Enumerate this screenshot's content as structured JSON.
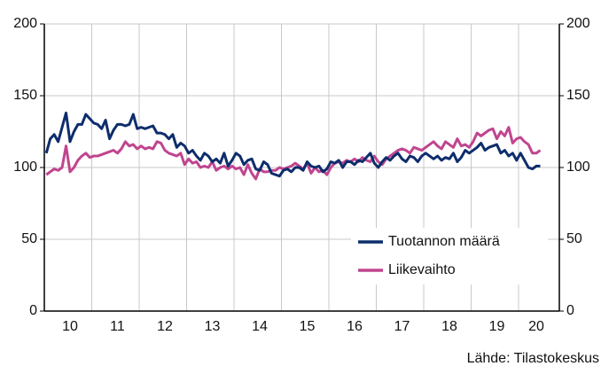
{
  "chart_data": {
    "type": "line",
    "source": "Lähde: Tilastokeskus",
    "categories": [
      null,
      null,
      null,
      null,
      null,
      null,
      "10",
      null,
      null,
      null,
      null,
      null,
      null,
      null,
      null,
      null,
      null,
      null,
      "11",
      null,
      null,
      null,
      null,
      null,
      null,
      null,
      null,
      null,
      null,
      null,
      "12",
      null,
      null,
      null,
      null,
      null,
      null,
      null,
      null,
      null,
      null,
      null,
      "13",
      null,
      null,
      null,
      null,
      null,
      null,
      null,
      null,
      null,
      null,
      null,
      "14",
      null,
      null,
      null,
      null,
      null,
      null,
      null,
      null,
      null,
      null,
      null,
      "15",
      null,
      null,
      null,
      null,
      null,
      null,
      null,
      null,
      null,
      null,
      null,
      "16",
      null,
      null,
      null,
      null,
      null,
      null,
      null,
      null,
      null,
      null,
      null,
      "17",
      null,
      null,
      null,
      null,
      null,
      null,
      null,
      null,
      null,
      null,
      null,
      "18",
      null,
      null,
      null,
      null,
      null,
      null,
      null,
      null,
      null,
      null,
      null,
      "19",
      null,
      null,
      null,
      null,
      null,
      null,
      null,
      null,
      null,
      "20",
      null
    ],
    "series": [
      {
        "name": "Tuotannon määrä",
        "color": "#0d2d6c",
        "values": [
          110,
          120,
          123,
          118,
          128,
          138,
          118,
          125,
          130,
          130,
          137,
          134,
          131,
          130,
          127,
          133,
          120,
          126,
          130,
          130,
          129,
          130,
          137,
          127,
          128,
          127,
          128,
          129,
          124,
          124,
          123,
          120,
          123,
          114,
          117,
          115,
          110,
          112,
          108,
          105,
          110,
          108,
          104,
          106,
          103,
          110,
          101,
          105,
          110,
          108,
          102,
          105,
          106,
          99,
          98,
          104,
          102,
          96,
          95,
          94,
          98,
          99,
          97,
          100,
          100,
          98,
          104,
          101,
          100,
          101,
          97,
          99,
          104,
          103,
          105,
          100,
          104,
          104,
          102,
          105,
          104,
          107,
          110,
          103,
          100,
          104,
          107,
          105,
          108,
          110,
          106,
          104,
          108,
          107,
          104,
          108,
          110,
          108,
          106,
          108,
          105,
          107,
          106,
          110,
          104,
          107,
          112,
          110,
          112,
          114,
          117,
          112,
          114,
          115,
          116,
          110,
          112,
          108,
          110,
          105,
          110,
          105,
          100,
          99,
          101,
          101
        ]
      },
      {
        "name": "Liikevaihto",
        "color": "#c0458f",
        "values": [
          95,
          97,
          99,
          98,
          100,
          115,
          97,
          100,
          105,
          108,
          110,
          107,
          108,
          108,
          109,
          110,
          111,
          112,
          110,
          113,
          118,
          115,
          116,
          113,
          115,
          113,
          114,
          113,
          118,
          117,
          112,
          110,
          109,
          108,
          110,
          102,
          106,
          103,
          104,
          100,
          101,
          100,
          104,
          98,
          100,
          101,
          99,
          101,
          99,
          100,
          95,
          102,
          96,
          92,
          99,
          97,
          97,
          98,
          98,
          100,
          99,
          100,
          101,
          103,
          101,
          99,
          103,
          96,
          100,
          97,
          98,
          95,
          100,
          103,
          104,
          103,
          105,
          104,
          106,
          104,
          107,
          105,
          104,
          108,
          104,
          102,
          106,
          108,
          110,
          112,
          113,
          112,
          110,
          114,
          113,
          112,
          114,
          116,
          118,
          115,
          113,
          118,
          116,
          114,
          120,
          115,
          116,
          114,
          118,
          124,
          122,
          124,
          126,
          127,
          120,
          125,
          122,
          128,
          117,
          120,
          121,
          118,
          116,
          110,
          110,
          112
        ]
      }
    ],
    "ylim": [
      0,
      200
    ],
    "yticks": [
      0,
      50,
      100,
      150,
      200
    ],
    "y2lim": [
      0,
      200
    ],
    "y2ticks": [
      0,
      50,
      100,
      150,
      200
    ],
    "grid": true,
    "legend": "lower right"
  }
}
